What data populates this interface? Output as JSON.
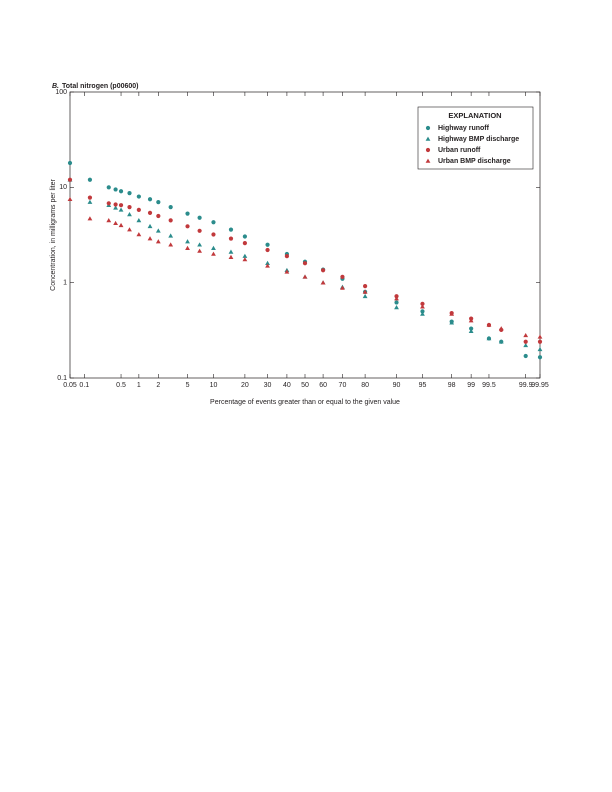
{
  "chart_data": {
    "type": "probability-scatter",
    "panel_label": "B.",
    "title": "Total nitrogen (p00600)",
    "x_label": "Percentage of events greater than or equal to the given value",
    "y_label": "Concentration, in milligrams per liter",
    "x_scale": "probability",
    "y_scale": "log",
    "xlim": [
      0.05,
      99.95
    ],
    "ylim": [
      0.1,
      100
    ],
    "xticks": [
      0.05,
      0.1,
      0.5,
      1,
      2,
      5,
      10,
      20,
      30,
      40,
      50,
      60,
      70,
      80,
      90,
      95,
      98,
      99,
      99.5,
      99.9,
      99.95
    ],
    "yticks": [
      0.1,
      1,
      10,
      100
    ],
    "legend_title": "EXPLANATION",
    "legend_position": "upper right",
    "series": [
      {
        "name": "Highway runoff",
        "color": "#2b8c8c",
        "marker": "circle",
        "x": [
          0.05,
          0.13,
          0.3,
          0.4,
          0.5,
          0.7,
          1,
          1.5,
          2,
          3,
          5,
          7,
          10,
          15,
          20,
          30,
          40,
          50,
          60,
          70,
          80,
          90,
          95,
          98,
          99,
          99.5,
          99.7,
          99.9,
          99.95
        ],
        "values": [
          18,
          12,
          10,
          9.5,
          9.1,
          8.7,
          8,
          7.5,
          7,
          6.2,
          5.3,
          4.8,
          4.3,
          3.6,
          3.05,
          2.5,
          2.0,
          1.66,
          1.37,
          1.1,
          0.8,
          0.62,
          0.5,
          0.39,
          0.33,
          0.26,
          0.24,
          0.17,
          0.165
        ]
      },
      {
        "name": "Highway BMP discharge",
        "color": "#2b8c8c",
        "marker": "triangle",
        "x": [
          0.05,
          0.13,
          0.3,
          0.4,
          0.5,
          0.7,
          1,
          1.5,
          2,
          3,
          5,
          7,
          10,
          15,
          20,
          30,
          40,
          50,
          60,
          70,
          80,
          90,
          95,
          98,
          99,
          99.5,
          99.7,
          99.9,
          99.95
        ],
        "values": [
          12,
          7,
          6.5,
          6.1,
          5.8,
          5.2,
          4.5,
          3.9,
          3.5,
          3.1,
          2.7,
          2.5,
          2.3,
          2.1,
          1.9,
          1.6,
          1.35,
          1.15,
          1.0,
          0.9,
          0.72,
          0.55,
          0.47,
          0.38,
          0.31,
          0.26,
          0.24,
          0.22,
          0.2
        ]
      },
      {
        "name": "Urban runoff",
        "color": "#c1393c",
        "marker": "circle",
        "x": [
          0.05,
          0.13,
          0.3,
          0.4,
          0.5,
          0.7,
          1,
          1.5,
          2,
          3,
          5,
          7,
          10,
          15,
          20,
          30,
          40,
          50,
          60,
          70,
          80,
          90,
          95,
          98,
          99,
          99.5,
          99.7,
          99.9,
          99.95
        ],
        "values": [
          12,
          7.8,
          6.8,
          6.6,
          6.5,
          6.2,
          5.8,
          5.4,
          5,
          4.5,
          3.9,
          3.5,
          3.2,
          2.9,
          2.6,
          2.2,
          1.9,
          1.6,
          1.35,
          1.15,
          0.92,
          0.72,
          0.6,
          0.48,
          0.42,
          0.36,
          0.32,
          0.24,
          0.24
        ]
      },
      {
        "name": "Urban BMP discharge",
        "color": "#c1393c",
        "marker": "triangle",
        "x": [
          0.05,
          0.13,
          0.3,
          0.4,
          0.5,
          0.7,
          1,
          1.5,
          2,
          3,
          5,
          7,
          10,
          15,
          20,
          30,
          40,
          50,
          60,
          70,
          80,
          90,
          95,
          98,
          99,
          99.5,
          99.7,
          99.9,
          99.95
        ],
        "values": [
          7.5,
          4.7,
          4.5,
          4.2,
          4.0,
          3.6,
          3.2,
          2.9,
          2.7,
          2.5,
          2.3,
          2.15,
          2.0,
          1.85,
          1.75,
          1.5,
          1.3,
          1.15,
          1.0,
          0.88,
          0.8,
          0.68,
          0.56,
          0.47,
          0.4,
          0.36,
          0.33,
          0.28,
          0.27
        ]
      }
    ]
  }
}
